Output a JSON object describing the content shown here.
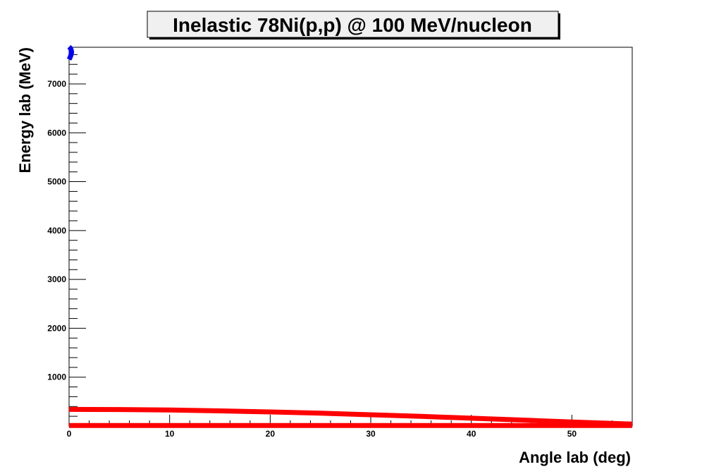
{
  "chart_data": {
    "type": "line",
    "title": "Inelastic 78Ni(p,p) @ 100 MeV/nucleon",
    "xlabel": "Angle lab (deg)",
    "ylabel": "Energy lab (MeV)",
    "xlim": [
      0,
      56
    ],
    "ylim": [
      0,
      7750
    ],
    "x_ticks": [
      0,
      10,
      20,
      30,
      40,
      50
    ],
    "y_ticks": [
      1000,
      2000,
      3000,
      4000,
      5000,
      6000,
      7000
    ],
    "grid": false,
    "series": [
      {
        "color": "#ff0000",
        "x": [
          0,
          5,
          10,
          15,
          20,
          25,
          30,
          35,
          40,
          45,
          50,
          56
        ],
        "y": [
          340,
          337,
          327,
          311,
          289,
          262,
          231,
          197,
          160,
          122,
          84,
          40
        ]
      },
      {
        "color": "#ff0000",
        "x": [
          0,
          56
        ],
        "y": [
          10,
          10
        ]
      },
      {
        "color": "#0000ff",
        "x": [
          0,
          0.1,
          0.2,
          0.25,
          0.2,
          0.1,
          0
        ],
        "y": [
          7500,
          7540,
          7600,
          7650,
          7700,
          7740,
          7760
        ]
      }
    ]
  }
}
